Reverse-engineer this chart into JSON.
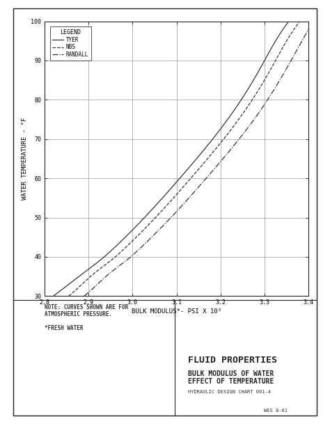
{
  "fig_width": 4.74,
  "fig_height": 6.12,
  "dpi": 100,
  "bg_color": "#ffffff",
  "plot_bg_color": "#ffffff",
  "xlim": [
    2.8,
    3.4
  ],
  "ylim": [
    30,
    100
  ],
  "xticks": [
    2.8,
    2.9,
    3.0,
    3.1,
    3.2,
    3.3,
    3.4
  ],
  "yticks": [
    30,
    40,
    50,
    60,
    70,
    80,
    90,
    100
  ],
  "xlabel": "BULK MODULUS*- PSI X 10³",
  "ylabel": "WATER TEMPERATURE - °F",
  "xlabel_fontsize": 6.5,
  "ylabel_fontsize": 6.5,
  "tick_fontsize": 6,
  "grid_color": "#999999",
  "grid_linewidth": 0.5,
  "curve_color": "#333333",
  "tyer_x": [
    2.82,
    2.855,
    2.89,
    2.925,
    2.965,
    3.01,
    3.06,
    3.115,
    3.175,
    3.235,
    3.285,
    3.325,
    3.355
  ],
  "tyer_y": [
    30,
    33,
    36,
    39,
    43,
    48,
    54,
    61,
    69,
    78,
    87,
    95,
    100
  ],
  "nbs_x": [
    2.855,
    2.885,
    2.915,
    2.95,
    2.99,
    3.035,
    3.085,
    3.14,
    3.2,
    3.26,
    3.31,
    3.35,
    3.38
  ],
  "nbs_y": [
    30,
    33,
    36,
    39,
    43,
    48,
    54,
    61,
    69,
    78,
    87,
    95,
    100
  ],
  "randall_x": [
    2.89,
    2.92,
    2.95,
    2.985,
    3.025,
    3.07,
    3.12,
    3.175,
    3.235,
    3.295,
    3.345,
    3.385,
    3.41
  ],
  "randall_y": [
    30,
    33,
    36,
    39,
    43,
    48,
    54,
    61,
    69,
    78,
    87,
    95,
    100
  ],
  "note_line1": "NOTE: CURVES SHOWN ARE FOR",
  "note_line2": "ATMOSPHERIC PRESSURE.",
  "note_line3": "*FRESH WATER",
  "title_main": "FLUID PROPERTIES",
  "title_sub1": "BULK MODULUS OF WATER",
  "title_sub2": "EFFECT OF TEMPERATURE",
  "title_sub3": "HYDRAULIC DESIGN CHART 001-4",
  "ref_text": "WES 8-61",
  "border_color": "#222222"
}
